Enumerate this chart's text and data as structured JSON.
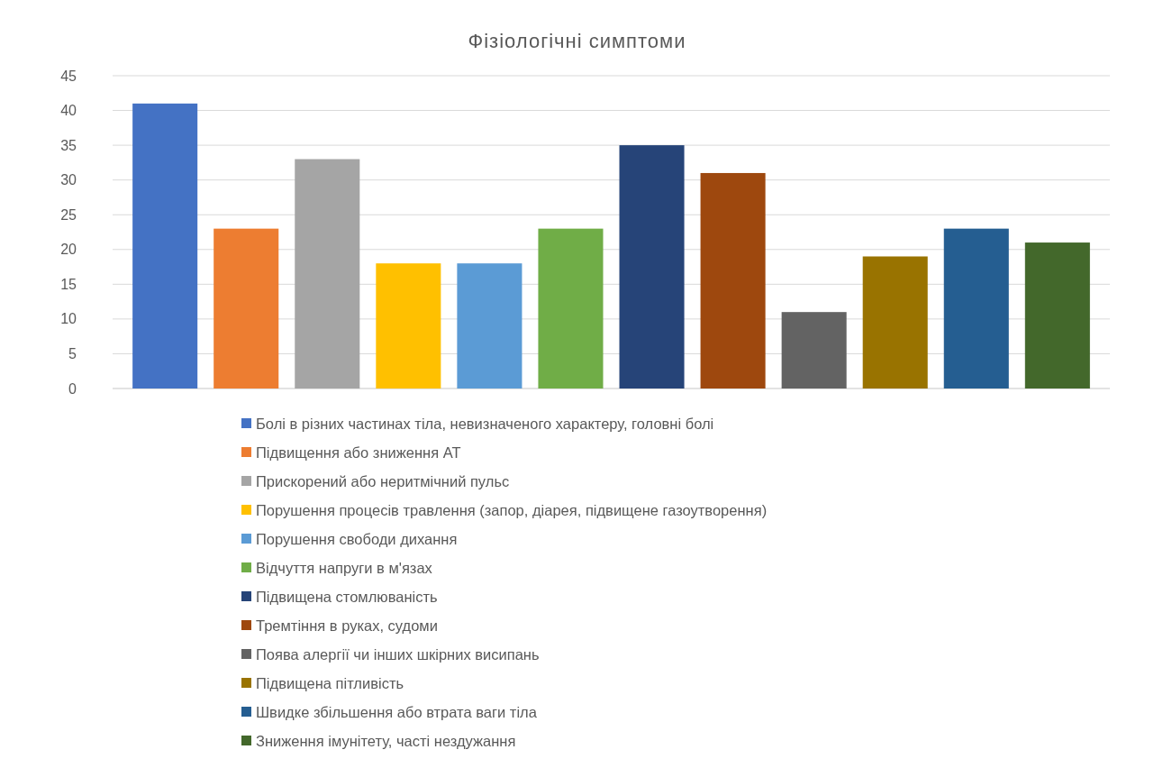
{
  "chart_data": {
    "type": "bar",
    "title": "Фізіологічні симптоми",
    "categories": [
      null
    ],
    "series": [
      {
        "name": "Болі в різних частинах тіла, невизначеного характеру, головні болі",
        "color": "#4472c4",
        "values": [
          41
        ]
      },
      {
        "name": "Підвищення або зниження АТ",
        "color": "#ed7d31",
        "values": [
          23
        ]
      },
      {
        "name": "Прискорений або неритмічний пульс",
        "color": "#a5a5a5",
        "values": [
          33
        ]
      },
      {
        "name": "Порушення процесів травлення (запор, діарея, підвищене газоутворення)",
        "color": "#ffc000",
        "values": [
          18
        ]
      },
      {
        "name": "Порушення свободи дихання",
        "color": "#5b9bd5",
        "values": [
          18
        ]
      },
      {
        "name": "Відчуття напруги в м'язах",
        "color": "#70ad47",
        "values": [
          23
        ]
      },
      {
        "name": "Підвищена стомлюваність",
        "color": "#264478",
        "values": [
          35
        ]
      },
      {
        "name": "Тремтіння в руках, судоми",
        "color": "#9e480e",
        "values": [
          31
        ]
      },
      {
        "name": "Поява алергії чи інших шкірних висипань",
        "color": "#636363",
        "values": [
          11
        ]
      },
      {
        "name": "Підвищена пітливість",
        "color": "#997300",
        "values": [
          19
        ]
      },
      {
        "name": "Швидке збільшення або втрата ваги тіла",
        "color": "#255e91",
        "values": [
          23
        ]
      },
      {
        "name": "Зниження імунітету, часті нездужання",
        "color": "#43682b",
        "values": [
          21
        ]
      }
    ],
    "ylim": [
      0,
      45
    ],
    "yticks": [
      0,
      5,
      10,
      15,
      20,
      25,
      30,
      35,
      40,
      45
    ],
    "grid": "y",
    "legend": "bottom"
  }
}
